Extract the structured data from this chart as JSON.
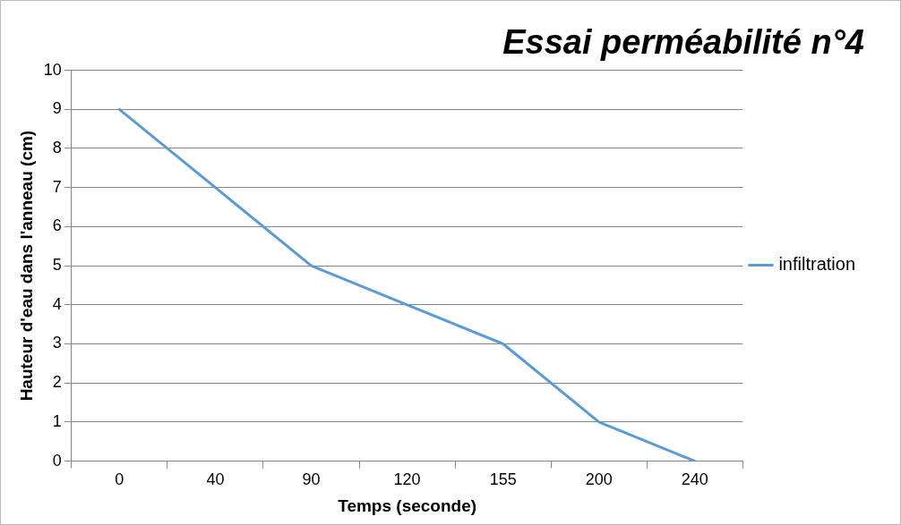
{
  "chart_data": {
    "type": "line",
    "title": "Essai perméabilité n°4",
    "xlabel": "Temps (seconde)",
    "ylabel": "Hauteur d'eau dans l'anneau (cm)",
    "categories": [
      "0",
      "40",
      "90",
      "120",
      "155",
      "200",
      "240"
    ],
    "series": [
      {
        "name": "infiltration",
        "color": "#5b9bd5",
        "values": [
          9,
          7,
          5,
          4,
          3,
          1,
          0
        ]
      }
    ],
    "ylim": [
      0,
      10
    ],
    "yticks": [
      0,
      1,
      2,
      3,
      4,
      5,
      6,
      7,
      8,
      9,
      10
    ],
    "grid": "y",
    "legend": "right",
    "marker": "none",
    "line_style": "solid"
  }
}
